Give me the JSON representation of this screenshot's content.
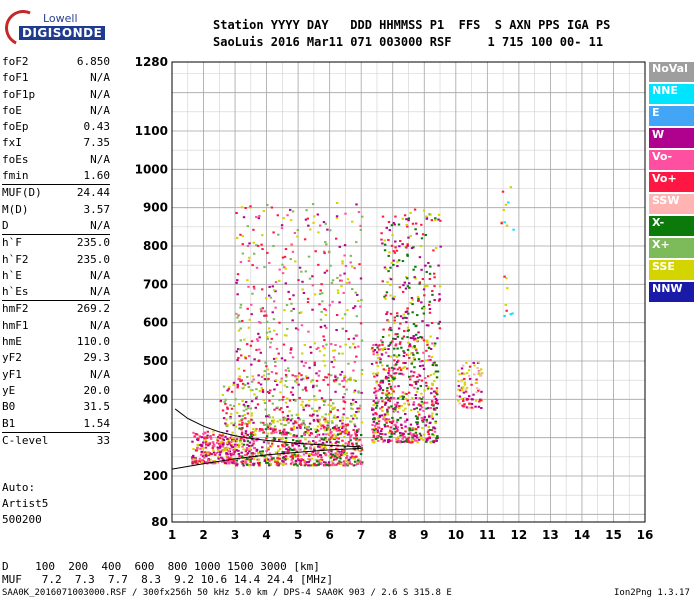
{
  "logo": {
    "top": "Lowell",
    "bottom": "DIGISONDE"
  },
  "header": {
    "line1": "Station YYYY DAY   DDD HHMMSS P1  FFS  S AXN PPS IGA PS",
    "line2": "SaoLuis 2016 Mar11 071 003000 RSF     1 715 100 00- 11"
  },
  "params": [
    {
      "k": "foF2",
      "v": "6.850"
    },
    {
      "k": "foF1",
      "v": "N/A"
    },
    {
      "k": "foF1p",
      "v": "N/A"
    },
    {
      "k": "foE",
      "v": "N/A"
    },
    {
      "k": "foEp",
      "v": "0.43"
    },
    {
      "k": "fxI",
      "v": "7.35"
    },
    {
      "k": "foEs",
      "v": "N/A"
    },
    {
      "k": "fmin",
      "v": "1.60"
    },
    {
      "k": "MUF(D)",
      "v": "24.44"
    },
    {
      "k": "M(D)",
      "v": "3.57"
    },
    {
      "k": "D",
      "v": "N/A"
    },
    {
      "k": "h`F",
      "v": "235.0"
    },
    {
      "k": "h`F2",
      "v": "235.0"
    },
    {
      "k": "h`E",
      "v": "N/A"
    },
    {
      "k": "h`Es",
      "v": "N/A"
    },
    {
      "k": "hmF2",
      "v": "269.2"
    },
    {
      "k": "hmF1",
      "v": "N/A"
    },
    {
      "k": "hmE",
      "v": "110.0"
    },
    {
      "k": "yF2",
      "v": "29.3"
    },
    {
      "k": "yF1",
      "v": "N/A"
    },
    {
      "k": "yE",
      "v": "20.0"
    },
    {
      "k": "B0",
      "v": "31.5"
    },
    {
      "k": "B1",
      "v": "1.54"
    },
    {
      "k": "C-level",
      "v": "33"
    }
  ],
  "auto": {
    "line1": "Auto:",
    "line2": "Artist5",
    "line3": "500200"
  },
  "legend": [
    {
      "label": "NoVal",
      "color": "#9e9e9e"
    },
    {
      "label": "NNE",
      "color": "#00e5ff"
    },
    {
      "label": "E",
      "color": "#42a5f5"
    },
    {
      "label": "W",
      "color": "#b0008e"
    },
    {
      "label": "Vo-",
      "color": "#ff4fa0"
    },
    {
      "label": "Vo+",
      "color": "#ff1744"
    },
    {
      "label": "SSW",
      "color": "#ffb3b3"
    },
    {
      "label": "X-",
      "color": "#0b7a0b"
    },
    {
      "label": "X+",
      "color": "#7dbb5a"
    },
    {
      "label": "SSE",
      "color": "#d4d400"
    },
    {
      "label": "NNW",
      "color": "#1a1aa8"
    }
  ],
  "footer": {
    "line1": "D    100  200  400  600  800 1000 1500 3000 [km]",
    "line2": "MUF   7.2  7.3  7.7  8.3  9.2 10.6 14.4 24.4 [MHz]",
    "left": "SAA0K_2016071003000.RSF / 300fx256h 50 kHz 5.0 km / DPS-4 SAA0K 903 / 2.6 S 315.8 E",
    "right": "Ion2Png 1.3.17"
  },
  "chart_data": {
    "type": "scatter",
    "xlim": [
      1,
      16
    ],
    "ylim": [
      80,
      1280
    ],
    "xticks": [
      1,
      2,
      3,
      4,
      5,
      6,
      7,
      8,
      9,
      10,
      11,
      12,
      13,
      14,
      15,
      16
    ],
    "yticks": [
      80,
      200,
      300,
      400,
      500,
      600,
      700,
      800,
      900,
      1000,
      1100,
      1280
    ],
    "grid": true,
    "legend_position": "right",
    "clusters": [
      {
        "x": [
          1.6,
          3.0
        ],
        "y": [
          235,
          320
        ],
        "n": 260,
        "colors": [
          "#ff1744",
          "#b0008e",
          "#ff4fa0",
          "#d4d400"
        ]
      },
      {
        "x": [
          3.0,
          7.0
        ],
        "y": [
          230,
          330
        ],
        "n": 700,
        "colors": [
          "#ff1744",
          "#b0008e",
          "#ff4fa0",
          "#0b7a0b",
          "#d4d400"
        ]
      },
      {
        "x": [
          2.5,
          7.0
        ],
        "y": [
          330,
          450
        ],
        "n": 320,
        "colors": [
          "#d4d400",
          "#ff1744",
          "#b0008e",
          "#7dbb5a"
        ]
      },
      {
        "x": [
          3.0,
          7.0
        ],
        "y": [
          450,
          920
        ],
        "n": 420,
        "colors": [
          "#d4d400",
          "#b0008e",
          "#ff1744",
          "#ff4fa0",
          "#7dbb5a"
        ]
      },
      {
        "x": [
          7.3,
          9.4
        ],
        "y": [
          290,
          560
        ],
        "n": 600,
        "colors": [
          "#ff1744",
          "#b0008e",
          "#ff4fa0",
          "#d4d400",
          "#0b7a0b"
        ]
      },
      {
        "x": [
          7.6,
          9.5
        ],
        "y": [
          560,
          900
        ],
        "n": 220,
        "colors": [
          "#d4d400",
          "#b0008e",
          "#ff1744",
          "#0b7a0b"
        ]
      },
      {
        "x": [
          10.0,
          10.8
        ],
        "y": [
          380,
          500
        ],
        "n": 90,
        "colors": [
          "#ff1744",
          "#b0008e",
          "#ffb3b3",
          "#d4d400"
        ]
      },
      {
        "x": [
          11.4,
          11.8
        ],
        "y": [
          620,
          980
        ],
        "n": 18,
        "colors": [
          "#d4d400",
          "#00e5ff",
          "#ff1744"
        ]
      }
    ],
    "traces": [
      {
        "x": [
          1.0,
          2.0,
          3.0,
          4.0,
          5.0,
          6.0,
          7.0
        ],
        "y": [
          218,
          232,
          245,
          255,
          262,
          268,
          272
        ]
      },
      {
        "x": [
          1.1,
          1.5,
          2.0,
          2.5,
          3.0,
          3.5,
          4.0,
          5.0,
          6.0,
          7.0
        ],
        "y": [
          375,
          350,
          330,
          315,
          305,
          298,
          293,
          285,
          280,
          276
        ]
      }
    ]
  }
}
